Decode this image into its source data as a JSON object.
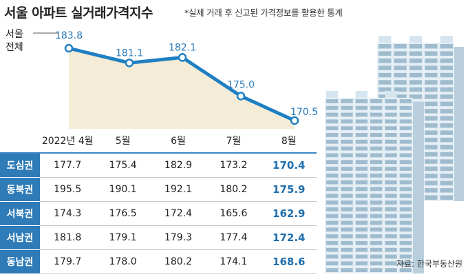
{
  "title": "서울 아파트 실거래가격지수",
  "subtitle": "*실제 거래 후 신고된 가격정보를 활용한 통계",
  "series_label": "서울\n전체",
  "source": "자료: 한국부동산원",
  "table": {
    "columns": [
      "2022년 4월",
      "5월",
      "6월",
      "7월",
      "8월"
    ],
    "rows": [
      {
        "region": "도심권",
        "values": [
          "177.7",
          "175.4",
          "182.9",
          "173.2",
          "170.4"
        ]
      },
      {
        "region": "동북권",
        "values": [
          "195.5",
          "190.1",
          "192.1",
          "180.2",
          "175.9"
        ]
      },
      {
        "region": "서북권",
        "values": [
          "174.3",
          "176.5",
          "172.4",
          "165.6",
          "162.9"
        ]
      },
      {
        "region": "서남권",
        "values": [
          "181.8",
          "179.1",
          "179.3",
          "177.4",
          "172.4"
        ]
      },
      {
        "region": "동남권",
        "values": [
          "179.7",
          "178.0",
          "180.2",
          "174.1",
          "168.6"
        ]
      }
    ]
  },
  "chart_data": {
    "type": "area",
    "x": [
      "2022년 4월",
      "5월",
      "6월",
      "7월",
      "8월"
    ],
    "series": [
      {
        "name": "서울 전체",
        "values": [
          183.8,
          181.1,
          182.1,
          175.0,
          170.5
        ]
      }
    ],
    "value_labels": [
      "183.8",
      "181.1",
      "182.1",
      "175.0",
      "170.5"
    ],
    "line_color": "#1f7fc3",
    "fill_color": "#f4ecd6"
  },
  "colors": {
    "accent": "#2e7bb8",
    "highlight": "#1f6fae"
  },
  "illustration": "apartment-buildings"
}
